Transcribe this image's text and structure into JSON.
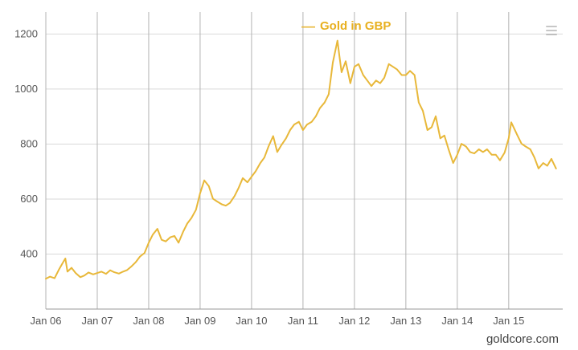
{
  "footer": {
    "credit": "goldcore.com"
  },
  "chart_data": {
    "type": "line",
    "title": "",
    "legend": {
      "marker": "—",
      "label": "Gold in GBP",
      "position": "top"
    },
    "grid": true,
    "xlim": [
      2006,
      2016.05
    ],
    "ylim": [
      200,
      1280
    ],
    "y_ticks": [
      400,
      600,
      800,
      1000,
      1200
    ],
    "x_ticks": [
      {
        "v": 2006,
        "label": "Jan 06"
      },
      {
        "v": 2007,
        "label": "Jan 07"
      },
      {
        "v": 2008,
        "label": "Jan 08"
      },
      {
        "v": 2009,
        "label": "Jan 09"
      },
      {
        "v": 2010,
        "label": "Jan 10"
      },
      {
        "v": 2011,
        "label": "Jan 11"
      },
      {
        "v": 2012,
        "label": "Jan 12"
      },
      {
        "v": 2013,
        "label": "Jan 13"
      },
      {
        "v": 2014,
        "label": "Jan 14"
      },
      {
        "v": 2015,
        "label": "Jan 15"
      }
    ],
    "colors": {
      "line": "#E8B83A",
      "legend_text": "#E8B020",
      "grid_h": "#D9D9D9",
      "grid_v": "#B3B3B3",
      "axis": "#999999",
      "tick_text": "#555555"
    },
    "series": [
      {
        "name": "Gold in GBP",
        "color": "#E8B83A",
        "points": [
          [
            2006.0,
            310
          ],
          [
            2006.08,
            318
          ],
          [
            2006.17,
            312
          ],
          [
            2006.25,
            342
          ],
          [
            2006.33,
            368
          ],
          [
            2006.38,
            384
          ],
          [
            2006.42,
            336
          ],
          [
            2006.5,
            350
          ],
          [
            2006.58,
            331
          ],
          [
            2006.67,
            316
          ],
          [
            2006.75,
            322
          ],
          [
            2006.83,
            333
          ],
          [
            2006.92,
            326
          ],
          [
            2007.0,
            331
          ],
          [
            2007.08,
            336
          ],
          [
            2007.17,
            328
          ],
          [
            2007.25,
            341
          ],
          [
            2007.33,
            334
          ],
          [
            2007.42,
            329
          ],
          [
            2007.5,
            336
          ],
          [
            2007.58,
            342
          ],
          [
            2007.67,
            356
          ],
          [
            2007.75,
            371
          ],
          [
            2007.83,
            391
          ],
          [
            2007.92,
            404
          ],
          [
            2008.0,
            441
          ],
          [
            2008.08,
            471
          ],
          [
            2008.17,
            492
          ],
          [
            2008.25,
            452
          ],
          [
            2008.33,
            446
          ],
          [
            2008.42,
            461
          ],
          [
            2008.5,
            466
          ],
          [
            2008.58,
            441
          ],
          [
            2008.67,
            481
          ],
          [
            2008.75,
            511
          ],
          [
            2008.83,
            531
          ],
          [
            2008.92,
            561
          ],
          [
            2009.0,
            621
          ],
          [
            2009.08,
            668
          ],
          [
            2009.17,
            647
          ],
          [
            2009.25,
            601
          ],
          [
            2009.33,
            591
          ],
          [
            2009.42,
            581
          ],
          [
            2009.5,
            576
          ],
          [
            2009.58,
            586
          ],
          [
            2009.67,
            611
          ],
          [
            2009.75,
            641
          ],
          [
            2009.83,
            676
          ],
          [
            2009.92,
            661
          ],
          [
            2010.0,
            681
          ],
          [
            2010.08,
            701
          ],
          [
            2010.17,
            731
          ],
          [
            2010.25,
            751
          ],
          [
            2010.33,
            791
          ],
          [
            2010.42,
            829
          ],
          [
            2010.5,
            771
          ],
          [
            2010.58,
            796
          ],
          [
            2010.67,
            821
          ],
          [
            2010.75,
            851
          ],
          [
            2010.83,
            871
          ],
          [
            2010.92,
            881
          ],
          [
            2011.0,
            851
          ],
          [
            2011.08,
            871
          ],
          [
            2011.17,
            881
          ],
          [
            2011.25,
            901
          ],
          [
            2011.33,
            931
          ],
          [
            2011.42,
            951
          ],
          [
            2011.5,
            981
          ],
          [
            2011.58,
            1096
          ],
          [
            2011.67,
            1176
          ],
          [
            2011.71,
            1118
          ],
          [
            2011.75,
            1061
          ],
          [
            2011.83,
            1101
          ],
          [
            2011.92,
            1021
          ],
          [
            2012.0,
            1081
          ],
          [
            2012.08,
            1091
          ],
          [
            2012.17,
            1051
          ],
          [
            2012.25,
            1031
          ],
          [
            2012.33,
            1011
          ],
          [
            2012.42,
            1031
          ],
          [
            2012.5,
            1021
          ],
          [
            2012.58,
            1041
          ],
          [
            2012.67,
            1091
          ],
          [
            2012.75,
            1081
          ],
          [
            2012.83,
            1071
          ],
          [
            2012.92,
            1051
          ],
          [
            2013.0,
            1051
          ],
          [
            2013.08,
            1066
          ],
          [
            2013.17,
            1051
          ],
          [
            2013.25,
            951
          ],
          [
            2013.33,
            921
          ],
          [
            2013.42,
            851
          ],
          [
            2013.5,
            861
          ],
          [
            2013.58,
            901
          ],
          [
            2013.67,
            821
          ],
          [
            2013.75,
            831
          ],
          [
            2013.83,
            781
          ],
          [
            2013.92,
            731
          ],
          [
            2014.0,
            761
          ],
          [
            2014.08,
            801
          ],
          [
            2014.17,
            791
          ],
          [
            2014.25,
            771
          ],
          [
            2014.33,
            766
          ],
          [
            2014.42,
            781
          ],
          [
            2014.5,
            771
          ],
          [
            2014.58,
            781
          ],
          [
            2014.67,
            761
          ],
          [
            2014.75,
            761
          ],
          [
            2014.83,
            741
          ],
          [
            2014.92,
            769
          ],
          [
            2015.0,
            821
          ],
          [
            2015.05,
            879
          ],
          [
            2015.17,
            831
          ],
          [
            2015.25,
            801
          ],
          [
            2015.33,
            791
          ],
          [
            2015.42,
            781
          ],
          [
            2015.5,
            751
          ],
          [
            2015.58,
            711
          ],
          [
            2015.67,
            731
          ],
          [
            2015.75,
            721
          ],
          [
            2015.83,
            746
          ],
          [
            2015.92,
            711
          ]
        ]
      }
    ]
  }
}
